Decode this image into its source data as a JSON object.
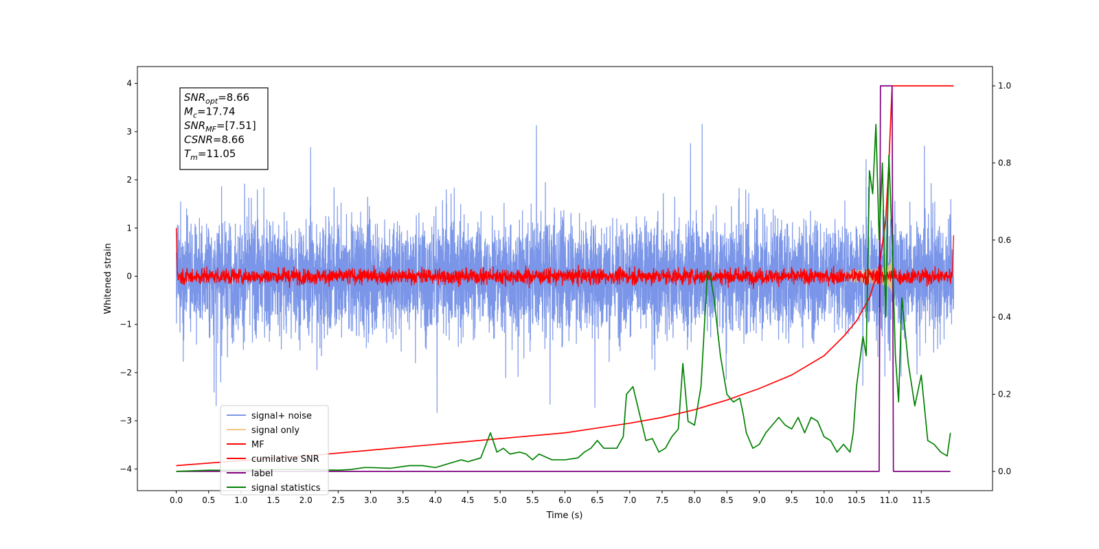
{
  "chart_data": {
    "type": "line",
    "title": "",
    "xlabel": "Time (s)",
    "ylabel": "Whitened strain",
    "xlim": [
      -0.6,
      12.6
    ],
    "ylim_left": [
      -4.45,
      4.35
    ],
    "ylim_right": [
      -0.05,
      1.05
    ],
    "x_ticks": [
      "0.0",
      "0.5",
      "1.0",
      "1.5",
      "2.0",
      "2.5",
      "3.0",
      "3.5",
      "4.0",
      "4.5",
      "5.0",
      "5.5",
      "6.0",
      "6.5",
      "7.0",
      "7.5",
      "8.0",
      "8.5",
      "9.0",
      "9.5",
      "10.0",
      "10.5",
      "11.0",
      "11.5"
    ],
    "y_ticks_left": [
      "−4",
      "−3",
      "−2",
      "−1",
      "0",
      "1",
      "2",
      "3",
      "4"
    ],
    "y_ticks_right": [
      "0.0",
      "0.2",
      "0.4",
      "0.6",
      "0.8",
      "1.0"
    ],
    "grid": false,
    "legend_position": "lower-left",
    "info_box": {
      "lines": [
        {
          "base": "SNR",
          "sub": "opt",
          "rest": "=8.66"
        },
        {
          "base": "M",
          "sub": "c",
          "rest": "=17.74"
        },
        {
          "base": "SNR",
          "sub": "MF",
          "rest": "=[7.51]"
        },
        {
          "base": "CSNR",
          "sub": "",
          "rest": "=8.66"
        },
        {
          "base": "T",
          "sub": "m",
          "rest": "=11.05"
        }
      ]
    },
    "series": [
      {
        "name": "signal+ noise",
        "axis": "left",
        "color": "#7b96e8",
        "description": "whitened noise with embedded chirp, x 0.0–12.0 s, amplitude about ±2.5, peaks to ±4"
      },
      {
        "name": "signal only",
        "axis": "left",
        "color": "#f5c77e",
        "description": "chirp, visible near 10.6–11.05 s with amplitude up to about 0.7"
      },
      {
        "name": "MF",
        "axis": "left",
        "color": "#ff0000",
        "description": "matched-filter output, amplitude about ±0.3, starts at 1.0 and ends near 0.85"
      },
      {
        "name": "cumilative SNR",
        "axis": "right",
        "color": "#ff0000",
        "x": [
          0.0,
          1.0,
          2.0,
          3.0,
          4.0,
          5.0,
          6.0,
          7.0,
          7.5,
          8.0,
          8.5,
          9.0,
          9.5,
          10.0,
          10.3,
          10.5,
          10.7,
          10.85,
          10.95,
          11.0,
          11.05,
          12.0
        ],
        "y": [
          0.015,
          0.028,
          0.04,
          0.055,
          0.07,
          0.085,
          0.1,
          0.125,
          0.14,
          0.16,
          0.185,
          0.215,
          0.25,
          0.3,
          0.35,
          0.39,
          0.45,
          0.53,
          0.65,
          0.8,
          1.0,
          1.0
        ]
      },
      {
        "name": "label",
        "axis": "right",
        "color": "#800080",
        "x": [
          0.0,
          10.85,
          10.87,
          11.05,
          11.07,
          11.95
        ],
        "y": [
          0.0,
          0.0,
          1.0,
          1.0,
          0.0,
          0.0
        ]
      },
      {
        "name": "signal statistics",
        "axis": "right",
        "color": "#008000",
        "x": [
          0.0,
          0.5,
          1.0,
          1.5,
          2.0,
          2.5,
          2.7,
          2.9,
          3.0,
          3.3,
          3.6,
          3.8,
          4.0,
          4.2,
          4.4,
          4.5,
          4.7,
          4.85,
          4.95,
          5.05,
          5.15,
          5.3,
          5.4,
          5.5,
          5.6,
          5.8,
          6.0,
          6.2,
          6.3,
          6.4,
          6.5,
          6.6,
          6.8,
          6.9,
          6.95,
          7.05,
          7.15,
          7.25,
          7.35,
          7.45,
          7.55,
          7.65,
          7.75,
          7.82,
          7.9,
          8.0,
          8.1,
          8.2,
          8.25,
          8.3,
          8.4,
          8.5,
          8.6,
          8.7,
          8.75,
          8.8,
          8.9,
          9.0,
          9.1,
          9.2,
          9.3,
          9.4,
          9.5,
          9.6,
          9.7,
          9.8,
          9.9,
          10.0,
          10.1,
          10.2,
          10.3,
          10.4,
          10.45,
          10.5,
          10.6,
          10.65,
          10.7,
          10.75,
          10.8,
          10.85,
          10.9,
          10.95,
          11.0,
          11.05,
          11.1,
          11.15,
          11.2,
          11.3,
          11.4,
          11.5,
          11.6,
          11.7,
          11.8,
          11.9,
          11.95
        ],
        "y": [
          0.0,
          0.003,
          0.003,
          0.005,
          0.005,
          0.003,
          0.005,
          0.01,
          0.01,
          0.008,
          0.015,
          0.015,
          0.01,
          0.02,
          0.03,
          0.025,
          0.035,
          0.1,
          0.05,
          0.06,
          0.045,
          0.05,
          0.045,
          0.03,
          0.045,
          0.03,
          0.03,
          0.035,
          0.05,
          0.06,
          0.08,
          0.06,
          0.06,
          0.09,
          0.2,
          0.22,
          0.15,
          0.08,
          0.085,
          0.05,
          0.06,
          0.09,
          0.11,
          0.28,
          0.13,
          0.12,
          0.22,
          0.52,
          0.5,
          0.45,
          0.3,
          0.2,
          0.18,
          0.19,
          0.15,
          0.1,
          0.06,
          0.07,
          0.1,
          0.12,
          0.14,
          0.12,
          0.11,
          0.14,
          0.1,
          0.14,
          0.13,
          0.09,
          0.08,
          0.05,
          0.07,
          0.05,
          0.1,
          0.22,
          0.35,
          0.3,
          0.78,
          0.72,
          0.9,
          0.6,
          0.8,
          0.4,
          0.82,
          0.6,
          0.3,
          0.18,
          0.45,
          0.28,
          0.17,
          0.25,
          0.08,
          0.07,
          0.05,
          0.04,
          0.1
        ]
      }
    ]
  }
}
